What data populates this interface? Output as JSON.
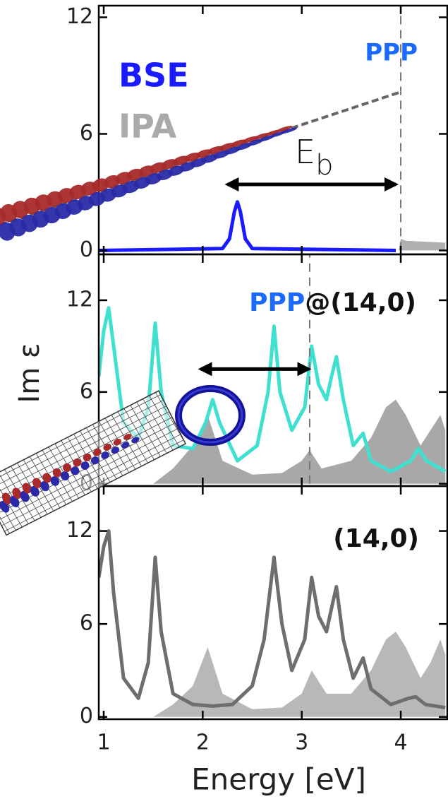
{
  "chart_data": [
    {
      "type": "line",
      "xlim": [
        0.95,
        4.47
      ],
      "xticks": [
        1,
        2,
        3,
        4
      ],
      "ylim": [
        -0.2,
        12.6
      ],
      "yticks": [
        0,
        6,
        12
      ],
      "series": [
        {
          "name": "IPA",
          "color": "#b0b0b0",
          "fill": true,
          "x": [
            0.95,
            3.98,
            4.0,
            4.05,
            4.45
          ],
          "values": [
            0,
            0,
            0.6,
            0.5,
            0.4
          ]
        },
        {
          "name": "BSE",
          "color": "#1a1aff",
          "fill": false,
          "x": [
            0.95,
            2.2,
            2.27,
            2.32,
            2.35,
            2.38,
            2.43,
            2.5,
            3.95
          ],
          "values": [
            0,
            0.1,
            0.6,
            2.0,
            2.5,
            2.0,
            0.6,
            0.1,
            0
          ]
        }
      ],
      "vline": 4.0,
      "arrow": {
        "x1": 2.25,
        "x2": 3.95,
        "y": 3.4
      },
      "annotation": {
        "name": "PPP",
        "energy": "E",
        "energy_sub": "b"
      }
    },
    {
      "type": "line",
      "xlim": [
        0.95,
        4.47
      ],
      "xticks": [
        1,
        2,
        3,
        4
      ],
      "ylim": [
        -0.15,
        15
      ],
      "yticks": [
        0,
        6,
        12
      ],
      "series": [
        {
          "color": "#a8a8a8",
          "fill": true,
          "x": [
            0.95,
            1.5,
            1.7,
            1.9,
            2.05,
            2.2,
            2.5,
            2.8,
            3.0,
            3.08,
            3.2,
            3.5,
            3.7,
            3.85,
            3.95,
            4.05,
            4.2,
            4.3,
            4.4,
            4.45
          ],
          "values": [
            0,
            0,
            1,
            2.5,
            4.5,
            1.5,
            0.6,
            0.7,
            1.5,
            2.2,
            1.0,
            1.5,
            3,
            5,
            5.5,
            4.5,
            2.5,
            3.5,
            4.5,
            3.5
          ]
        },
        {
          "color": "#40e0d0",
          "fill": false,
          "x": [
            0.95,
            1.0,
            1.05,
            1.1,
            1.2,
            1.35,
            1.45,
            1.52,
            1.58,
            1.7,
            1.9,
            2.03,
            2.1,
            2.17,
            2.35,
            2.55,
            2.66,
            2.72,
            2.78,
            2.9,
            3.03,
            3.1,
            3.17,
            3.25,
            3.3,
            3.35,
            3.42,
            3.52,
            3.62,
            3.7,
            3.9,
            4.1,
            4.18,
            4.26,
            4.45
          ],
          "values": [
            7,
            10,
            11.5,
            9,
            4,
            3,
            5,
            10.5,
            6,
            2.5,
            2.3,
            4,
            5.5,
            4,
            1.5,
            2.5,
            6,
            10.3,
            6,
            3.5,
            5,
            9.0,
            6.5,
            5.5,
            7,
            8.3,
            5.5,
            2.5,
            3.3,
            1.5,
            0.8,
            1.5,
            2.3,
            1.5,
            0.8
          ]
        }
      ],
      "vline": 3.08,
      "arrow": {
        "x1": 1.98,
        "x2": 3.07,
        "y": 7.5
      },
      "title_parts": [
        "PPP",
        "@(14,0)"
      ],
      "ylabel": "Im ε"
    },
    {
      "type": "line",
      "xlim": [
        0.95,
        4.47
      ],
      "xticks": [
        1,
        2,
        3,
        4
      ],
      "ylim": [
        -0.15,
        14.9
      ],
      "yticks": [
        0,
        6,
        12
      ],
      "series": [
        {
          "color": "#b8b8b8",
          "fill": true,
          "x": [
            0.95,
            1.5,
            1.7,
            1.9,
            2.05,
            2.2,
            2.5,
            2.8,
            3.0,
            3.1,
            3.25,
            3.5,
            3.7,
            3.85,
            3.95,
            4.05,
            4.2,
            4.3,
            4.4,
            4.45
          ],
          "values": [
            0,
            0,
            0.8,
            2,
            4.5,
            1.5,
            0.5,
            0.6,
            1.5,
            3,
            1.5,
            1.5,
            3,
            5,
            5.5,
            4.5,
            2.5,
            3.5,
            5,
            4
          ]
        },
        {
          "color": "#6e6e6e",
          "fill": false,
          "x": [
            0.95,
            1.0,
            1.05,
            1.1,
            1.2,
            1.35,
            1.45,
            1.52,
            1.58,
            1.7,
            1.9,
            2.1,
            2.3,
            2.5,
            2.62,
            2.72,
            2.8,
            2.9,
            3.03,
            3.1,
            3.17,
            3.25,
            3.3,
            3.35,
            3.42,
            3.52,
            3.62,
            3.7,
            3.9,
            4.08,
            4.15,
            4.25,
            4.45
          ],
          "values": [
            9,
            11,
            12,
            8,
            2.5,
            1.2,
            3.5,
            10.3,
            5.5,
            1.5,
            0.8,
            0.7,
            0.8,
            2,
            5,
            10.3,
            6,
            3,
            5,
            9,
            6.5,
            5.5,
            7,
            8.4,
            5,
            2.5,
            3.8,
            1.8,
            0.8,
            1.2,
            1.3,
            0.8,
            0.6
          ]
        }
      ],
      "title": "(14,0)",
      "xlabel": "Energy [eV]"
    }
  ]
}
